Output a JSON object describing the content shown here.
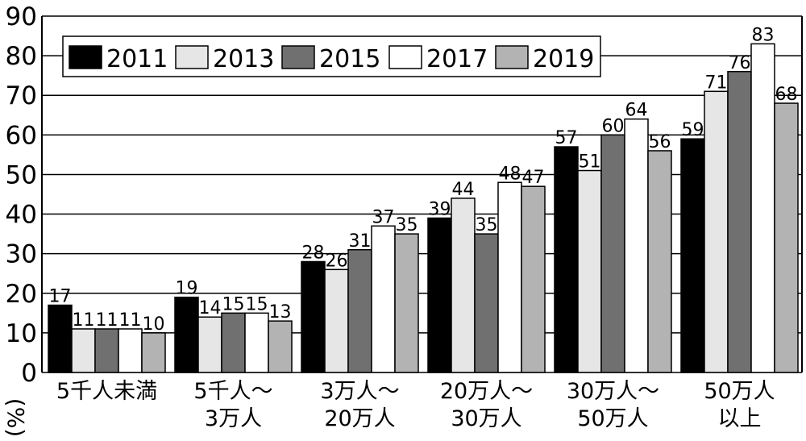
{
  "chart_data": {
    "type": "bar",
    "title": "",
    "xlabel": "",
    "ylabel": "(%)",
    "ylim": [
      0,
      90
    ],
    "yticks": [
      "0",
      "10",
      "20",
      "30",
      "40",
      "50",
      "60",
      "70",
      "80",
      "90"
    ],
    "grid": true,
    "legend_position": "top-left",
    "categories": [
      [
        "5千人未満"
      ],
      [
        "5千人～",
        "3万人"
      ],
      [
        "3万人～",
        "20万人"
      ],
      [
        "20万人～",
        "30万人"
      ],
      [
        "30万人～",
        "50万人"
      ],
      [
        "50万人",
        "以上"
      ]
    ],
    "series": [
      {
        "name": "2011",
        "color": "#000000",
        "values": [
          17,
          19,
          28,
          39,
          57,
          59
        ]
      },
      {
        "name": "2013",
        "color": "#e6e6e6",
        "values": [
          11,
          14,
          26,
          44,
          51,
          71
        ]
      },
      {
        "name": "2015",
        "color": "#707070",
        "values": [
          11,
          15,
          31,
          35,
          60,
          76
        ]
      },
      {
        "name": "2017",
        "color": "#ffffff",
        "values": [
          11,
          15,
          37,
          48,
          64,
          83
        ]
      },
      {
        "name": "2019",
        "color": "#b3b3b3",
        "values": [
          10,
          13,
          35,
          47,
          56,
          68
        ]
      }
    ]
  }
}
